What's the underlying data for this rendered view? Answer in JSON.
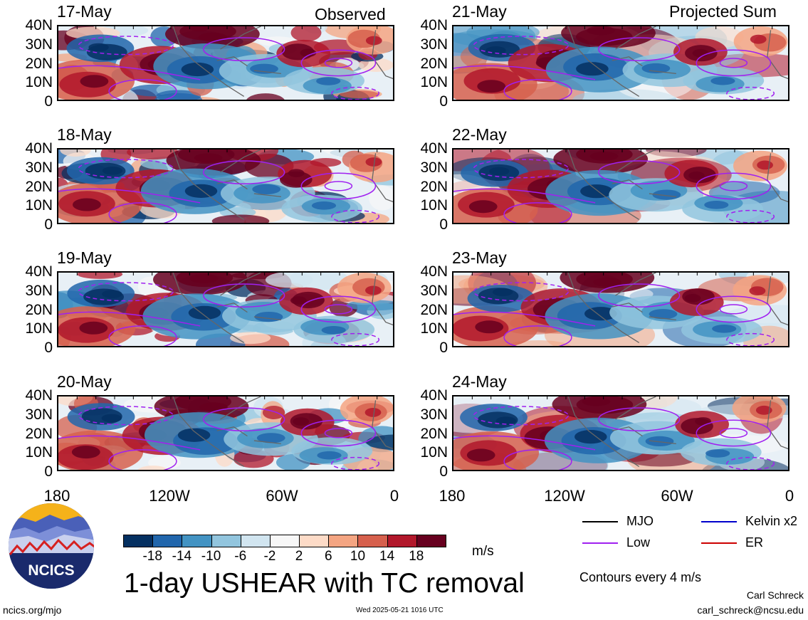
{
  "column_titles": {
    "left": "Observed",
    "right": "Projected Sum"
  },
  "panels": [
    {
      "date": "17-May",
      "column": "left",
      "row": 0
    },
    {
      "date": "18-May",
      "column": "left",
      "row": 1
    },
    {
      "date": "19-May",
      "column": "left",
      "row": 2
    },
    {
      "date": "20-May",
      "column": "left",
      "row": 3
    },
    {
      "date": "21-May",
      "column": "right",
      "row": 0
    },
    {
      "date": "22-May",
      "column": "right",
      "row": 1
    },
    {
      "date": "23-May",
      "column": "right",
      "row": 2
    },
    {
      "date": "24-May",
      "column": "right",
      "row": 3
    }
  ],
  "lat_ticks": [
    "40N",
    "30N",
    "20N",
    "10N",
    "0"
  ],
  "lon_ticks": [
    "180",
    "120W",
    "60W",
    "0"
  ],
  "colorbar": {
    "labels": [
      "-18",
      "-14",
      "-10",
      "-6",
      "-2",
      "2",
      "6",
      "10",
      "14",
      "18"
    ],
    "colors": [
      "#053061",
      "#2166ac",
      "#4393c3",
      "#92c5de",
      "#d1e5f0",
      "#f7f7f7",
      "#fddbc7",
      "#f4a582",
      "#d6604d",
      "#b2182b",
      "#67001f"
    ],
    "units": "m/s"
  },
  "legend": {
    "items": [
      {
        "label": "MJO",
        "color": "#000000"
      },
      {
        "label": "Kelvin x2",
        "color": "#0000cc"
      },
      {
        "label": "Low",
        "color": "#a020f0"
      },
      {
        "label": "ER",
        "color": "#cc0000"
      }
    ],
    "contour_note": "Contours every 4 m/s"
  },
  "figure_title": "1-day USHEAR with TC removal",
  "logo_text": "NCICS",
  "footer": {
    "url": "ncics.org/mjo",
    "timestamp": "Wed 2025-05-21 1016 UTC",
    "author": "Carl Schreck",
    "email": "carl_schreck@ncsu.edu"
  }
}
